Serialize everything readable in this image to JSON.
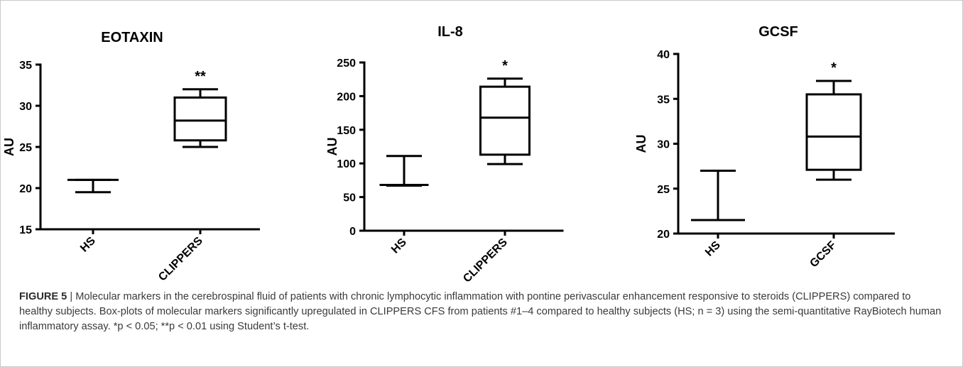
{
  "figure": {
    "label": "FIGURE 5",
    "caption": " | Molecular markers in the cerebrospinal fluid of patients with chronic lymphocytic inflammation with pontine perivascular enhancement responsive to steroids (CLIPPERS) compared to healthy subjects. Box-plots of molecular markers significantly upregulated in CLIPPERS CFS from patients #1–4 compared to healthy subjects (HS; n = 3) using the semi-quantitative RayBiotech human inflammatory assay. *p < 0.05; **p < 0.01 using Student’s t-test."
  },
  "chart_data": [
    {
      "type": "box",
      "title": "EOTAXIN",
      "ylabel": "AU",
      "ylim": [
        15,
        35
      ],
      "yticks": [
        15,
        20,
        25,
        30,
        35
      ],
      "categories": [
        "HS",
        "CLIPPERS"
      ],
      "boxes": [
        {
          "min": 19.5,
          "q1": 21,
          "median": 21,
          "q3": 21,
          "max": 21
        },
        {
          "min": 25,
          "q1": 25.8,
          "median": 28.2,
          "q3": 31,
          "max": 32
        }
      ],
      "significance": [
        "",
        "**"
      ]
    },
    {
      "type": "box",
      "title": "IL-8",
      "ylabel": "AU",
      "ylim": [
        0,
        250
      ],
      "yticks": [
        0,
        50,
        100,
        150,
        200,
        250
      ],
      "categories": [
        "HS",
        "CLIPPERS"
      ],
      "boxes": [
        {
          "min": 67,
          "q1": 68,
          "median": 68,
          "q3": 68,
          "max": 111
        },
        {
          "min": 99,
          "q1": 113,
          "median": 168,
          "q3": 214,
          "max": 226
        }
      ],
      "significance": [
        "",
        "*"
      ]
    },
    {
      "type": "box",
      "title": "GCSF",
      "ylabel": "AU",
      "ylim": [
        20,
        40
      ],
      "yticks": [
        20,
        25,
        30,
        35,
        40
      ],
      "categories": [
        "HS",
        "GCSF"
      ],
      "boxes": [
        {
          "min": 21.5,
          "q1": 21.5,
          "median": 21.5,
          "q3": 21.5,
          "max": 27
        },
        {
          "min": 26,
          "q1": 27.1,
          "median": 30.8,
          "q3": 35.5,
          "max": 37
        }
      ],
      "significance": [
        "",
        "*"
      ]
    }
  ]
}
